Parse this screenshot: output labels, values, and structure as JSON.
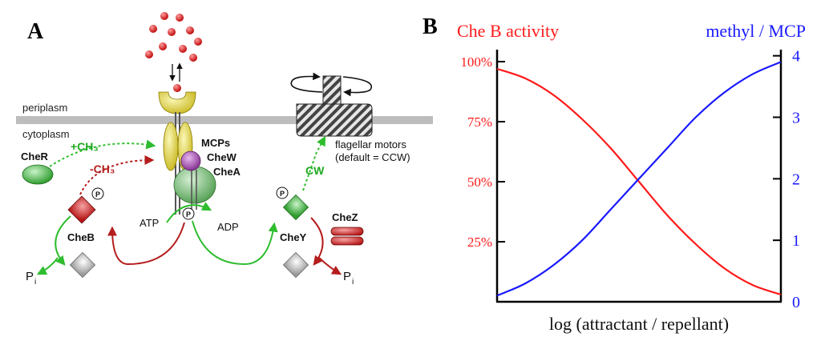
{
  "panel_a": {
    "letter": "A",
    "labels": {
      "periplasm": "periplasm",
      "cytoplasm": "cytoplasm",
      "mcps": "MCPs",
      "chew": "CheW",
      "chea": "CheA",
      "cher": "CheR",
      "plus_ch3": "+CH₃",
      "minus_ch3": "-CH₃",
      "cheb": "CheB",
      "chey": "CheY",
      "chez": "CheZ",
      "atp": "ATP",
      "adp": "ADP",
      "cw": "CW",
      "motors_line1": "flagellar motors",
      "motors_line2": "(default = CCW)",
      "pi_left": "P",
      "pi_right": "P",
      "pi_sub": "i",
      "p": "P"
    },
    "colors": {
      "membrane": "#b8b8b8",
      "receptor": "#e3d73a",
      "chew": "#a64fb0",
      "chea": "#64b564",
      "cher": "#4fd04f",
      "cheb": "#d6282b",
      "chey": "#36c236",
      "chez": "#d02828",
      "green_arrow": "#2ebd2e",
      "red_arrow": "#b51d1d",
      "ligand": "#e01818"
    }
  },
  "panel_b": {
    "letter": "B",
    "chart_data": {
      "type": "line",
      "x_label": "log (attractant / repellant)",
      "y_left_label": "Che B activity",
      "y_right_label": "methyl / MCP",
      "y_left_ticks": [
        "25%",
        "50%",
        "75%",
        "100%"
      ],
      "y_left_range": [
        0,
        105
      ],
      "y_right_ticks": [
        "0",
        "1",
        "2",
        "3",
        "4"
      ],
      "y_right_range": [
        0,
        4.1
      ],
      "x_range": [
        0,
        1
      ],
      "series": [
        {
          "name": "Che B activity",
          "axis": "left",
          "color": "#ff1a1a",
          "x": [
            0,
            0.1,
            0.2,
            0.3,
            0.4,
            0.5,
            0.6,
            0.7,
            0.8,
            0.9,
            1.0
          ],
          "y": [
            97,
            93,
            86,
            76,
            64,
            50,
            36,
            24,
            14,
            7,
            3
          ]
        },
        {
          "name": "methyl / MCP",
          "axis": "right",
          "color": "#1a1aff",
          "x": [
            0,
            0.1,
            0.2,
            0.3,
            0.4,
            0.5,
            0.6,
            0.7,
            0.8,
            0.9,
            1.0
          ],
          "y": [
            0.1,
            0.3,
            0.6,
            1.0,
            1.5,
            2.0,
            2.5,
            3.0,
            3.4,
            3.7,
            3.9
          ]
        }
      ]
    }
  }
}
